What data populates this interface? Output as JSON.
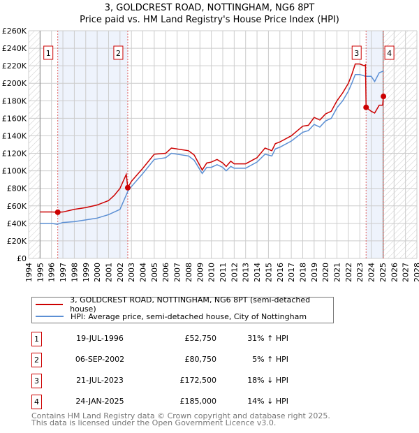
{
  "title": "3, GOLDCREST ROAD, NOTTINGHAM, NG6 8PT",
  "subtitle": "Price paid vs. HM Land Registry's House Price Index (HPI)",
  "colors": {
    "property": "#cc0000",
    "hpi": "#5b8fd4",
    "shade": "#eef3fc"
  },
  "chart_data": {
    "type": "line",
    "title": "3, GOLDCREST ROAD, NOTTINGHAM, NG6 8PT — Price paid vs. HPI",
    "xlabel": "",
    "ylabel": "",
    "xlim": [
      1994,
      2028
    ],
    "ylim": [
      0,
      260000
    ],
    "x_ticks": [
      "1994",
      "1995",
      "1996",
      "1997",
      "1998",
      "1999",
      "2000",
      "2001",
      "2002",
      "2003",
      "2004",
      "2005",
      "2006",
      "2007",
      "2008",
      "2009",
      "2010",
      "2011",
      "2012",
      "2013",
      "2014",
      "2015",
      "2016",
      "2017",
      "2018",
      "2019",
      "2020",
      "2021",
      "2022",
      "2023",
      "2024",
      "2025",
      "2026",
      "2027",
      "2028"
    ],
    "y_ticks": [
      {
        "v": 0,
        "l": "£0"
      },
      {
        "v": 20000,
        "l": "£20K"
      },
      {
        "v": 40000,
        "l": "£40K"
      },
      {
        "v": 60000,
        "l": "£60K"
      },
      {
        "v": 80000,
        "l": "£80K"
      },
      {
        "v": 100000,
        "l": "£100K"
      },
      {
        "v": 120000,
        "l": "£120K"
      },
      {
        "v": 140000,
        "l": "£140K"
      },
      {
        "v": 160000,
        "l": "£160K"
      },
      {
        "v": 180000,
        "l": "£180K"
      },
      {
        "v": 200000,
        "l": "£200K"
      },
      {
        "v": 220000,
        "l": "£220K"
      },
      {
        "v": 240000,
        "l": "£240K"
      },
      {
        "v": 260000,
        "l": "£260K"
      }
    ],
    "grid": true,
    "data_range": [
      1995,
      2025.07
    ],
    "shaded_periods": [
      [
        1996.55,
        2002.68
      ],
      [
        2023.55,
        2025.07
      ]
    ],
    "series": [
      {
        "name": "3, GOLDCREST ROAD, NOTTINGHAM, NG6 8PT (semi-detached house)",
        "color": "#cc0000",
        "points": [
          [
            1995,
            53
          ],
          [
            1996,
            53
          ],
          [
            1996.55,
            52.75
          ],
          [
            1997,
            53
          ],
          [
            1998,
            56
          ],
          [
            1999,
            58
          ],
          [
            2000,
            61
          ],
          [
            2001,
            66
          ],
          [
            2001.5,
            72
          ],
          [
            2002,
            80
          ],
          [
            2002.55,
            96
          ],
          [
            2002.68,
            80.75
          ],
          [
            2003,
            88
          ],
          [
            2004,
            103
          ],
          [
            2005,
            119
          ],
          [
            2006,
            120
          ],
          [
            2006.5,
            126
          ],
          [
            2007,
            125
          ],
          [
            2008,
            123
          ],
          [
            2008.5,
            118
          ],
          [
            2009.2,
            101
          ],
          [
            2009.6,
            109
          ],
          [
            2010,
            110
          ],
          [
            2010.5,
            113
          ],
          [
            2011,
            109
          ],
          [
            2011.3,
            105
          ],
          [
            2011.7,
            111
          ],
          [
            2012,
            108
          ],
          [
            2013,
            108
          ],
          [
            2014,
            115
          ],
          [
            2014.7,
            126
          ],
          [
            2015.3,
            123
          ],
          [
            2015.6,
            131
          ],
          [
            2016,
            133
          ],
          [
            2017,
            140
          ],
          [
            2018,
            151
          ],
          [
            2018.5,
            152
          ],
          [
            2019,
            161
          ],
          [
            2019.5,
            158
          ],
          [
            2020,
            165
          ],
          [
            2020.5,
            168
          ],
          [
            2021,
            180
          ],
          [
            2021.5,
            189
          ],
          [
            2022,
            200
          ],
          [
            2022.3,
            210
          ],
          [
            2022.6,
            222
          ],
          [
            2023,
            222
          ],
          [
            2023.4,
            220
          ],
          [
            2023.5,
            221
          ],
          [
            2023.55,
            172.5
          ],
          [
            2024,
            168
          ],
          [
            2024.3,
            166
          ],
          [
            2024.7,
            175
          ],
          [
            2025,
            175
          ],
          [
            2025.07,
            185
          ]
        ]
      },
      {
        "name": "HPI: Average price, semi-detached house, City of Nottingham",
        "color": "#5b8fd4",
        "points": [
          [
            1995,
            40
          ],
          [
            1996,
            40
          ],
          [
            1996.5,
            39
          ],
          [
            1997,
            41
          ],
          [
            1998,
            42
          ],
          [
            1999,
            44
          ],
          [
            2000,
            46
          ],
          [
            2001,
            50
          ],
          [
            2002,
            56
          ],
          [
            2002.7,
            77
          ],
          [
            2003,
            82
          ],
          [
            2004,
            97
          ],
          [
            2005,
            113
          ],
          [
            2006,
            115
          ],
          [
            2006.5,
            120
          ],
          [
            2007,
            119
          ],
          [
            2008,
            117
          ],
          [
            2008.5,
            112
          ],
          [
            2009.2,
            97
          ],
          [
            2009.6,
            104
          ],
          [
            2010,
            104
          ],
          [
            2010.5,
            107
          ],
          [
            2011,
            104
          ],
          [
            2011.3,
            100
          ],
          [
            2011.7,
            105
          ],
          [
            2012,
            103
          ],
          [
            2013,
            103
          ],
          [
            2014,
            110
          ],
          [
            2014.7,
            119
          ],
          [
            2015.3,
            117
          ],
          [
            2015.6,
            125
          ],
          [
            2016,
            127
          ],
          [
            2017,
            134
          ],
          [
            2018,
            144
          ],
          [
            2018.5,
            146
          ],
          [
            2019,
            153
          ],
          [
            2019.5,
            150
          ],
          [
            2020,
            157
          ],
          [
            2020.5,
            160
          ],
          [
            2021,
            172
          ],
          [
            2021.5,
            180
          ],
          [
            2022,
            191
          ],
          [
            2022.3,
            200
          ],
          [
            2022.6,
            210
          ],
          [
            2023,
            210
          ],
          [
            2023.5,
            208
          ],
          [
            2024,
            208
          ],
          [
            2024.3,
            202
          ],
          [
            2024.7,
            212
          ],
          [
            2025.07,
            214
          ]
        ]
      }
    ],
    "point_units": "thousands GBP",
    "sales": [
      {
        "n": "1",
        "x": 1996.55,
        "y": 52.75
      },
      {
        "n": "2",
        "x": 2002.68,
        "y": 80.75
      },
      {
        "n": "3",
        "x": 2023.55,
        "y": 172.5
      },
      {
        "n": "4",
        "x": 2025.07,
        "y": 185
      }
    ]
  },
  "legend": {
    "property": "3, GOLDCREST ROAD, NOTTINGHAM, NG6 8PT (semi-detached house)",
    "hpi": "HPI: Average price, semi-detached house, City of Nottingham"
  },
  "transactions": [
    {
      "n": "1",
      "date": "19-JUL-1996",
      "price": "£52,750",
      "hpi": "31% ↑ HPI"
    },
    {
      "n": "2",
      "date": "06-SEP-2002",
      "price": "£80,750",
      "hpi": "5% ↑ HPI"
    },
    {
      "n": "3",
      "date": "21-JUL-2023",
      "price": "£172,500",
      "hpi": "18% ↓ HPI"
    },
    {
      "n": "4",
      "date": "24-JAN-2025",
      "price": "£185,000",
      "hpi": "14% ↓ HPI"
    }
  ],
  "footer": {
    "line1": "Contains HM Land Registry data © Crown copyright and database right 2025.",
    "line2": "This data is licensed under the Open Government Licence v3.0."
  }
}
